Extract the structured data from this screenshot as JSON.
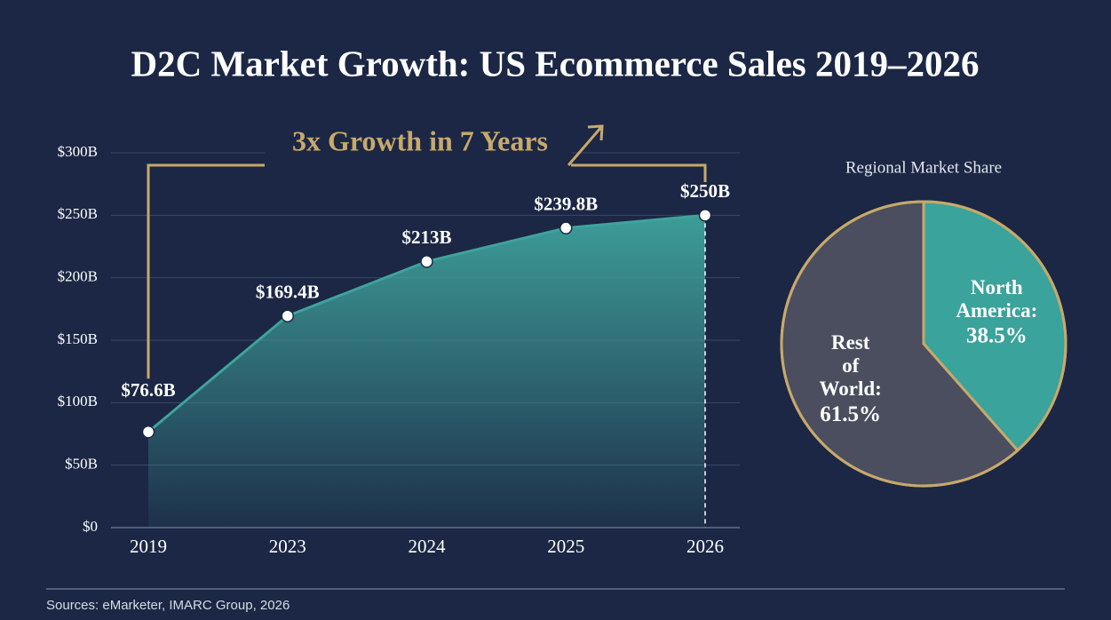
{
  "title": "D2C Market Growth: US Ecommerce Sales 2019–2026",
  "source": "Sources: eMarketer, IMARC Group, 2026",
  "chart_data": [
    {
      "type": "area",
      "annotation": "3x Growth in 7 Years",
      "categories": [
        "2019",
        "2023",
        "2024",
        "2025",
        "2026"
      ],
      "values": [
        76.6,
        169.4,
        213,
        239.8,
        250
      ],
      "value_labels": [
        "$76.6B",
        "$169.4B",
        "$213B",
        "$239.8B",
        "$250B"
      ],
      "color": "#3fa39c",
      "ylim": [
        0,
        300
      ],
      "yticks": [
        {
          "value": 0,
          "label": "$0"
        },
        {
          "value": 50,
          "label": "$50B"
        },
        {
          "value": 100,
          "label": "$100B"
        },
        {
          "value": 150,
          "label": "$150B"
        },
        {
          "value": 200,
          "label": "$200B"
        },
        {
          "value": 250,
          "label": "$250B"
        },
        {
          "value": 300,
          "label": "$300B"
        }
      ],
      "grid": true
    },
    {
      "type": "pie",
      "title": "Regional Market Share",
      "categories": [
        "North America:",
        "Rest of World:"
      ],
      "values": [
        38.5,
        61.5
      ],
      "value_labels": [
        "38.5%",
        "61.5%"
      ],
      "colors": [
        "#3aa39b",
        "#4a4e5f"
      ]
    }
  ]
}
